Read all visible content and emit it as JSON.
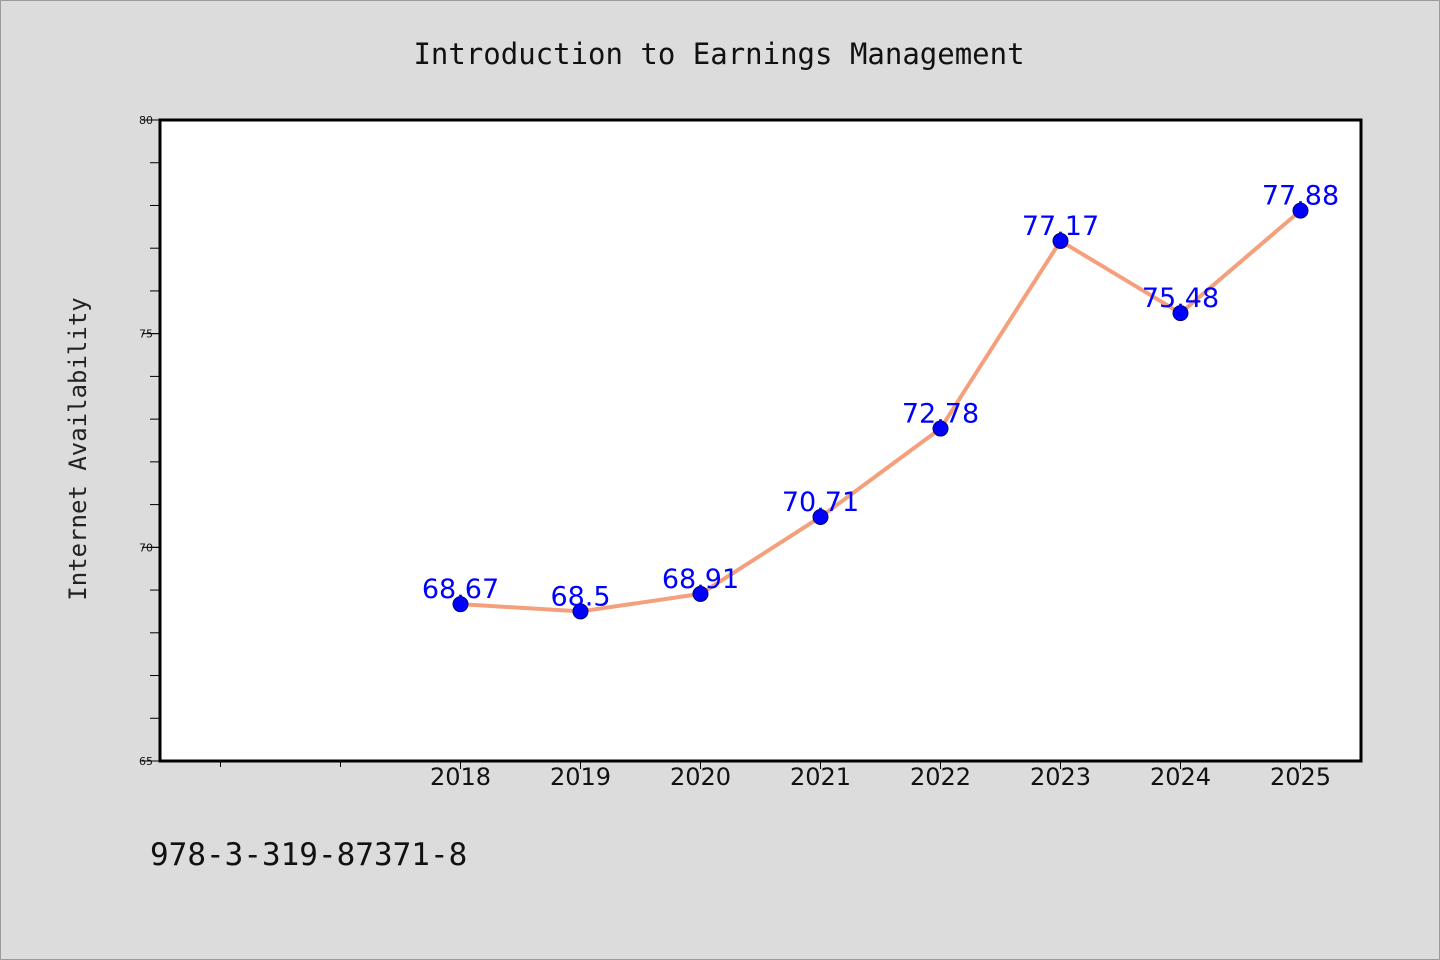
{
  "chart_data": {
    "type": "line",
    "title": "Introduction to Earnings Management",
    "ylabel": "Internet Availability",
    "xlabel": "",
    "categories": [
      "2018",
      "2019",
      "2020",
      "2021",
      "2022",
      "2023",
      "2024",
      "2025"
    ],
    "values": [
      68.67,
      68.5,
      68.91,
      70.71,
      72.78,
      77.17,
      75.48,
      77.88
    ],
    "value_labels": [
      "68.67",
      "68.5",
      "68.91",
      "70.71",
      "72.78",
      "77.17",
      "75.48",
      "77.88"
    ],
    "ylim": [
      65,
      80
    ],
    "yticks": [
      65,
      70,
      75,
      80
    ],
    "ytick_labels": [
      "65",
      "70",
      "75",
      "80"
    ],
    "grid": false,
    "legend": "none",
    "line_color": "#f4a07c",
    "marker_color": "#0000ff",
    "label_color": "#0000ff"
  },
  "footer": {
    "isbn": "978-3-319-87371-8"
  }
}
